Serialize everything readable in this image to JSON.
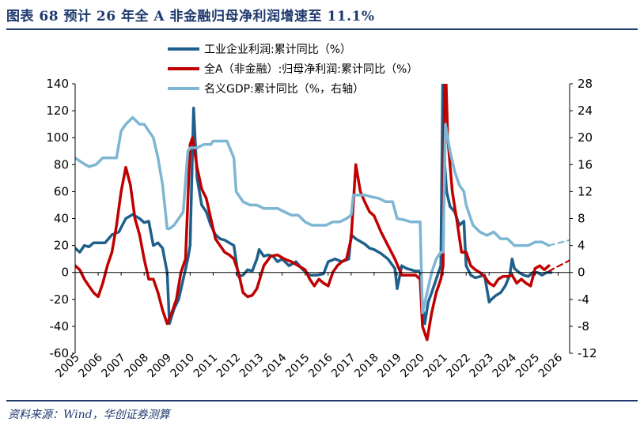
{
  "figure": {
    "title": "图表 68    预计 26 年全 A 非金融归母净利润增速至 11.1%",
    "source": "资料来源：Wind，华创证券测算"
  },
  "chart_data": {
    "type": "line",
    "title": "图表 68    预计 26 年全 A 非金融归母净利润增速至 11.1%",
    "xlabel": "",
    "ylabel": "",
    "x_ticks": [
      "2005",
      "2006",
      "2007",
      "2008",
      "2009",
      "2010",
      "2011",
      "2012",
      "2013",
      "2014",
      "2015",
      "2016",
      "2017",
      "2018",
      "2019",
      "2020",
      "2021",
      "2022",
      "2023",
      "2024",
      "2025",
      "2026"
    ],
    "xlim": [
      2005,
      2026.5
    ],
    "y_left": {
      "lim": [
        -60,
        140
      ],
      "ticks": [
        -60,
        -40,
        -20,
        0,
        20,
        40,
        60,
        80,
        100,
        120,
        140
      ]
    },
    "y_right": {
      "lim": [
        -12,
        28
      ],
      "ticks": [
        -12,
        -8,
        -4,
        0,
        4,
        8,
        12,
        16,
        20,
        24,
        28
      ]
    },
    "legend_position": "top-center",
    "grid": false,
    "series": [
      {
        "name": "工业企业利润:累计同比（%）",
        "axis": "left",
        "color": "#1f5f8b",
        "x": [
          2005.0,
          2005.2,
          2005.4,
          2005.6,
          2005.8,
          2006.0,
          2006.3,
          2006.6,
          2006.9,
          2007.2,
          2007.5,
          2007.8,
          2008.0,
          2008.2,
          2008.4,
          2008.6,
          2008.8,
          2009.0,
          2009.1,
          2009.3,
          2009.5,
          2009.7,
          2009.9,
          2010.0,
          2010.15,
          2010.3,
          2010.5,
          2010.7,
          2010.9,
          2011.1,
          2011.3,
          2011.5,
          2011.7,
          2011.9,
          2012.1,
          2012.3,
          2012.5,
          2012.7,
          2012.9,
          2013.0,
          2013.2,
          2013.4,
          2013.6,
          2013.8,
          2014.0,
          2014.3,
          2014.6,
          2014.9,
          2015.2,
          2015.5,
          2015.8,
          2016.0,
          2016.3,
          2016.6,
          2016.9,
          2017.0,
          2017.2,
          2017.4,
          2017.6,
          2017.8,
          2018.0,
          2018.3,
          2018.6,
          2018.9,
          2019.0,
          2019.2,
          2019.4,
          2019.6,
          2019.8,
          2020.0,
          2020.1,
          2020.2,
          2020.35,
          2020.5,
          2020.7,
          2020.9,
          2021.0,
          2021.07,
          2021.15,
          2021.3,
          2021.5,
          2021.7,
          2021.9,
          2022.0,
          2022.2,
          2022.4,
          2022.6,
          2022.8,
          2023.0,
          2023.1,
          2023.3,
          2023.5,
          2023.7,
          2023.9,
          2024.0,
          2024.1,
          2024.3,
          2024.5,
          2024.7,
          2024.9,
          2025.1,
          2025.3,
          2025.5,
          2025.7
        ],
        "y": [
          18,
          15,
          20,
          19,
          22,
          22,
          22,
          28,
          30,
          40,
          43,
          40,
          37,
          38,
          20,
          22,
          18,
          0,
          -38,
          -27,
          -20,
          -5,
          10,
          20,
          122,
          70,
          50,
          45,
          35,
          28,
          25,
          24,
          22,
          20,
          -3,
          -2,
          2,
          1,
          10,
          17,
          12,
          13,
          12,
          8,
          10,
          5,
          8,
          2,
          -2,
          -2,
          -1,
          8,
          10,
          8,
          10,
          28,
          25,
          23,
          21,
          18,
          17,
          14,
          10,
          3,
          -12,
          5,
          3,
          2,
          1,
          1,
          -25,
          -38,
          -22,
          -15,
          -5,
          5,
          170,
          80,
          60,
          49,
          45,
          35,
          38,
          5,
          -2,
          -4,
          -3,
          -2,
          -22,
          -20,
          -17,
          -15,
          -10,
          -2,
          10,
          3,
          0,
          -2,
          -3,
          0,
          0,
          -2,
          0,
          0
        ]
      },
      {
        "name": "全A（非金融）:归母净利润:累计同比（%）",
        "axis": "left",
        "color": "#c00000",
        "x": [
          2005.0,
          2005.2,
          2005.4,
          2005.6,
          2005.8,
          2006.0,
          2006.2,
          2006.4,
          2006.6,
          2006.8,
          2007.0,
          2007.2,
          2007.4,
          2007.6,
          2007.8,
          2008.0,
          2008.2,
          2008.4,
          2008.6,
          2008.8,
          2009.0,
          2009.2,
          2009.4,
          2009.6,
          2009.8,
          2010.0,
          2010.1,
          2010.3,
          2010.5,
          2010.7,
          2010.9,
          2011.1,
          2011.3,
          2011.5,
          2011.7,
          2011.9,
          2012.1,
          2012.3,
          2012.5,
          2012.7,
          2012.9,
          2013.2,
          2013.5,
          2013.8,
          2014.1,
          2014.4,
          2014.7,
          2015.0,
          2015.2,
          2015.4,
          2015.6,
          2015.8,
          2016.0,
          2016.2,
          2016.4,
          2016.6,
          2016.8,
          2017.0,
          2017.2,
          2017.4,
          2017.6,
          2017.8,
          2018.0,
          2018.3,
          2018.6,
          2018.9,
          2019.2,
          2019.5,
          2019.8,
          2020.0,
          2020.1,
          2020.3,
          2020.5,
          2020.7,
          2020.9,
          2021.0,
          2021.08,
          2021.2,
          2021.4,
          2021.6,
          2021.8,
          2022.0,
          2022.2,
          2022.4,
          2022.6,
          2022.8,
          2023.0,
          2023.2,
          2023.4,
          2023.6,
          2023.8,
          2024.0,
          2024.2,
          2024.4,
          2024.6,
          2024.8,
          2025.0,
          2025.2,
          2025.4,
          2025.6
        ],
        "y": [
          5,
          2,
          -5,
          -10,
          -15,
          -18,
          -8,
          5,
          15,
          35,
          60,
          78,
          65,
          40,
          28,
          10,
          -5,
          -5,
          -15,
          -28,
          -38,
          -30,
          -20,
          0,
          10,
          95,
          100,
          78,
          62,
          55,
          40,
          25,
          20,
          15,
          13,
          10,
          0,
          -15,
          -18,
          -17,
          -12,
          5,
          12,
          13,
          10,
          8,
          5,
          2,
          -5,
          -10,
          -5,
          -8,
          -10,
          0,
          5,
          8,
          10,
          25,
          80,
          60,
          52,
          45,
          42,
          30,
          20,
          10,
          -2,
          -2,
          -2,
          -5,
          -40,
          -50,
          -30,
          -15,
          -5,
          5,
          170,
          100,
          60,
          38,
          15,
          15,
          5,
          2,
          0,
          -3,
          -8,
          -10,
          -5,
          -3,
          -3,
          -2,
          -8,
          -5,
          -8,
          -10,
          3,
          5,
          2,
          5
        ]
      },
      {
        "name": "名义GDP:累计同比（%，右轴）",
        "axis": "right",
        "color": "#7db6d3",
        "x": [
          2005.0,
          2005.3,
          2005.6,
          2005.9,
          2006.2,
          2006.5,
          2006.8,
          2007.0,
          2007.2,
          2007.5,
          2007.8,
          2008.0,
          2008.2,
          2008.4,
          2008.6,
          2008.8,
          2009.0,
          2009.1,
          2009.3,
          2009.5,
          2009.7,
          2009.9,
          2010.0,
          2010.3,
          2010.6,
          2010.9,
          2011.0,
          2011.3,
          2011.6,
          2011.9,
          2012.0,
          2012.3,
          2012.6,
          2012.9,
          2013.2,
          2013.5,
          2013.8,
          2014.1,
          2014.4,
          2014.7,
          2015.0,
          2015.3,
          2015.6,
          2015.9,
          2016.2,
          2016.5,
          2016.8,
          2017.0,
          2017.1,
          2017.3,
          2017.6,
          2017.9,
          2018.2,
          2018.5,
          2018.8,
          2019.0,
          2019.3,
          2019.6,
          2019.9,
          2020.0,
          2020.1,
          2020.3,
          2020.5,
          2020.7,
          2020.9,
          2021.0,
          2021.1,
          2021.3,
          2021.5,
          2021.7,
          2021.9,
          2022.0,
          2022.3,
          2022.6,
          2022.9,
          2023.2,
          2023.5,
          2023.8,
          2024.1,
          2024.4,
          2024.7,
          2025.0,
          2025.3,
          2025.6
        ],
        "y": [
          17,
          16.3,
          15.7,
          16,
          17,
          17,
          17,
          21,
          22,
          23,
          22,
          22,
          21,
          20,
          17,
          13,
          6.5,
          6.5,
          7,
          8,
          9,
          18,
          18.5,
          18.5,
          19,
          19,
          19.5,
          19.5,
          19.5,
          17,
          12,
          10.5,
          10,
          10,
          9.5,
          9.5,
          9.5,
          9,
          8.5,
          8.5,
          7.5,
          7,
          7,
          7,
          7.5,
          7.5,
          8,
          8.5,
          11.5,
          11.5,
          11.5,
          11.2,
          11,
          10.5,
          10.5,
          8,
          7.8,
          7.5,
          7.5,
          7.5,
          -6,
          -3,
          0,
          2,
          3,
          3,
          22,
          18,
          15,
          13,
          12,
          10,
          7,
          6,
          5.5,
          6,
          5,
          5,
          4,
          4,
          4,
          4.5,
          4.5,
          4
        ]
      },
      {
        "name": "",
        "axis": "left",
        "color": "#c00000",
        "style": "dashed",
        "x": [
          2025.6,
          2026.5
        ],
        "y": [
          1,
          9
        ]
      },
      {
        "name": "",
        "axis": "right",
        "color": "#7db6d3",
        "style": "dashed",
        "x": [
          2025.6,
          2026.5
        ],
        "y": [
          4,
          4.8
        ]
      }
    ]
  }
}
